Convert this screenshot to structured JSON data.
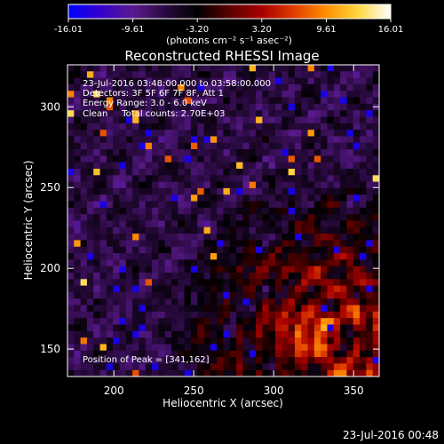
{
  "colorbar": {
    "ticks": [
      "-16.01",
      "-9.61",
      "-3.20",
      "3.20",
      "9.61",
      "16.01"
    ],
    "units": "(photons cm⁻² s⁻¹ asec⁻²)",
    "range": [
      -16.01,
      16.01
    ],
    "colors": [
      "#0000ff",
      "#3300cc",
      "#5a1a8f",
      "#2a0a40",
      "#000000",
      "#5a0000",
      "#a80000",
      "#e03c00",
      "#ff9000",
      "#ffd840",
      "#ffffff"
    ]
  },
  "chart_data": {
    "type": "heatmap",
    "title": "Reconstructed RHESSI Image",
    "xlabel": "Heliocentric X (arcsec)",
    "ylabel": "Heliocentric Y (arcsec)",
    "xlim": [
      171,
      366
    ],
    "ylim": [
      133,
      326
    ],
    "x_ticks": [
      200,
      250,
      300,
      350
    ],
    "y_ticks": [
      150,
      200,
      250,
      300
    ],
    "annotations": [
      "23-Jul-2016 03:48:00.000 to 03:58:00.000",
      "Detectors: 3F 5F 6F 7F 8F, Att 1",
      "Energy Range: 3.0 - 6.0 keV",
      "Clean     Total counts: 2.70E+03"
    ],
    "peak_label": "Position of Peak = [341,162]",
    "peak_position": [
      341,
      162
    ],
    "grid_cells": [
      48,
      48
    ]
  },
  "footer": {
    "timestamp": "23-Jul-2016 00:48"
  }
}
